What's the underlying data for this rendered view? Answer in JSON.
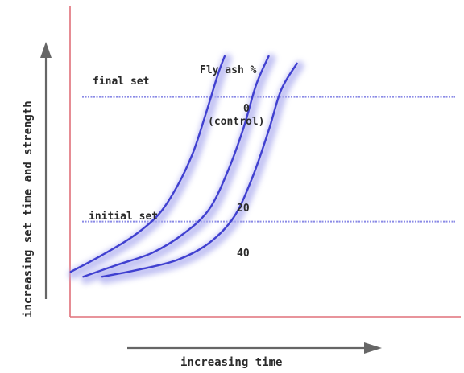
{
  "chart_data": {
    "type": "line",
    "title": "",
    "xlabel": "increasing time",
    "ylabel": "increasing set time and strength",
    "legend_title": "Fly ash %",
    "ticks": "none",
    "series": [
      {
        "name": "0",
        "sub_label": "(control)",
        "points": [
          [
            0.02,
            0.1
          ],
          [
            0.12,
            0.17
          ],
          [
            0.22,
            0.25
          ],
          [
            0.3,
            0.34
          ],
          [
            0.36,
            0.46
          ],
          [
            0.41,
            0.6
          ],
          [
            0.45,
            0.76
          ],
          [
            0.49,
            0.93
          ],
          [
            0.51,
            1.0
          ]
        ]
      },
      {
        "name": "20",
        "points": [
          [
            0.06,
            0.08
          ],
          [
            0.17,
            0.13
          ],
          [
            0.28,
            0.18
          ],
          [
            0.38,
            0.26
          ],
          [
            0.46,
            0.36
          ],
          [
            0.52,
            0.52
          ],
          [
            0.57,
            0.7
          ],
          [
            0.61,
            0.88
          ],
          [
            0.65,
            1.0
          ]
        ]
      },
      {
        "name": "40",
        "points": [
          [
            0.12,
            0.08
          ],
          [
            0.24,
            0.11
          ],
          [
            0.36,
            0.15
          ],
          [
            0.46,
            0.22
          ],
          [
            0.54,
            0.33
          ],
          [
            0.6,
            0.5
          ],
          [
            0.65,
            0.69
          ],
          [
            0.69,
            0.86
          ],
          [
            0.74,
            0.97
          ]
        ]
      }
    ],
    "reference_lines": [
      {
        "label": "final set",
        "y": 0.83
      },
      {
        "label": "initial set",
        "y": 0.31
      }
    ],
    "colors": {
      "curve": "#4040d0",
      "curve_glow": "#b0b0f0",
      "reference_line": "#8a8ae6",
      "axes": "#e0707a",
      "arrow": "#666666",
      "text": "#2a2a2a"
    }
  }
}
